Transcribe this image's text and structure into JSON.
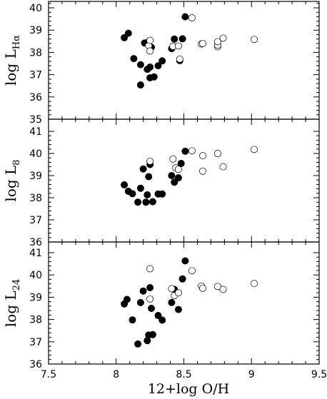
{
  "chart_data": {
    "type": "scatter",
    "xlabel": "12+log O/H",
    "x_ticks": [
      "7.5",
      "8",
      "8.5",
      "9",
      "9.5"
    ],
    "xlim": [
      7.5,
      9.5
    ],
    "panels": [
      {
        "ylabel_main": "log L",
        "ylabel_sub": "Hα",
        "ylim": [
          35,
          40.4
        ],
        "y_ticks": [
          "35",
          "36",
          "37",
          "38",
          "39",
          "40"
        ],
        "series": [
          {
            "marker": "filled",
            "points": [
              [
                8.06,
                38.66
              ],
              [
                8.09,
                38.86
              ],
              [
                8.13,
                37.72
              ],
              [
                8.18,
                36.54
              ],
              [
                8.18,
                37.45
              ],
              [
                8.21,
                38.42
              ],
              [
                8.23,
                37.24
              ],
              [
                8.24,
                38.48
              ],
              [
                8.25,
                36.86
              ],
              [
                8.25,
                37.34
              ],
              [
                8.26,
                38.23
              ],
              [
                8.28,
                36.9
              ],
              [
                8.31,
                37.4
              ],
              [
                8.34,
                37.62
              ],
              [
                8.41,
                38.17
              ],
              [
                8.43,
                38.6
              ],
              [
                8.47,
                37.63
              ],
              [
                8.49,
                38.61
              ],
              [
                8.51,
                39.6
              ]
            ]
          },
          {
            "marker": "open",
            "points": [
              [
                8.24,
                38.3
              ],
              [
                8.25,
                38.54
              ],
              [
                8.25,
                38.06
              ],
              [
                8.42,
                38.27
              ],
              [
                8.46,
                38.29
              ],
              [
                8.47,
                37.7
              ],
              [
                8.56,
                39.55
              ],
              [
                8.63,
                38.38
              ],
              [
                8.64,
                38.4
              ],
              [
                8.75,
                38.25
              ],
              [
                8.75,
                38.32
              ],
              [
                8.75,
                38.48
              ],
              [
                8.79,
                38.64
              ],
              [
                9.02,
                38.58
              ]
            ]
          }
        ]
      },
      {
        "ylabel_main": "log L",
        "ylabel_sub": "8",
        "ylim": [
          36,
          41.1
        ],
        "y_ticks": [
          "36",
          "37",
          "38",
          "39",
          "40",
          "41"
        ],
        "series": [
          {
            "marker": "filled",
            "points": [
              [
                8.06,
                38.58
              ],
              [
                8.09,
                38.29
              ],
              [
                8.12,
                38.18
              ],
              [
                8.16,
                37.8
              ],
              [
                8.18,
                38.43
              ],
              [
                8.2,
                39.3
              ],
              [
                8.22,
                37.8
              ],
              [
                8.23,
                38.13
              ],
              [
                8.24,
                38.95
              ],
              [
                8.25,
                39.5
              ],
              [
                8.27,
                37.82
              ],
              [
                8.31,
                38.17
              ],
              [
                8.34,
                38.17
              ],
              [
                8.41,
                39.0
              ],
              [
                8.43,
                38.7
              ],
              [
                8.46,
                38.9
              ],
              [
                8.48,
                39.55
              ],
              [
                8.51,
                40.1
              ]
            ]
          },
          {
            "marker": "open",
            "points": [
              [
                8.25,
                39.65
              ],
              [
                8.42,
                39.75
              ],
              [
                8.44,
                39.35
              ],
              [
                8.46,
                39.28
              ],
              [
                8.56,
                40.12
              ],
              [
                8.64,
                39.9
              ],
              [
                8.64,
                39.2
              ],
              [
                8.75,
                40.0
              ],
              [
                8.79,
                39.4
              ],
              [
                9.02,
                40.18
              ]
            ]
          }
        ]
      },
      {
        "ylabel_main": "log L",
        "ylabel_sub": "24",
        "ylim": [
          36,
          41.1
        ],
        "y_ticks": [
          "36",
          "37",
          "38",
          "39",
          "40",
          "41"
        ],
        "series": [
          {
            "marker": "filled",
            "points": [
              [
                8.06,
                38.7
              ],
              [
                8.08,
                38.9
              ],
              [
                8.12,
                37.98
              ],
              [
                8.16,
                36.9
              ],
              [
                8.18,
                38.76
              ],
              [
                8.2,
                39.28
              ],
              [
                8.23,
                37.05
              ],
              [
                8.24,
                37.3
              ],
              [
                8.25,
                39.43
              ],
              [
                8.26,
                38.5
              ],
              [
                8.27,
                37.32
              ],
              [
                8.31,
                38.18
              ],
              [
                8.34,
                37.97
              ],
              [
                8.41,
                38.76
              ],
              [
                8.43,
                39.35
              ],
              [
                8.46,
                38.45
              ],
              [
                8.49,
                39.82
              ],
              [
                8.51,
                40.63
              ]
            ]
          },
          {
            "marker": "open",
            "points": [
              [
                8.25,
                40.28
              ],
              [
                8.25,
                38.92
              ],
              [
                8.41,
                39.38
              ],
              [
                8.43,
                39.07
              ],
              [
                8.46,
                39.2
              ],
              [
                8.56,
                40.19
              ],
              [
                8.63,
                39.5
              ],
              [
                8.64,
                39.4
              ],
              [
                8.75,
                39.48
              ],
              [
                8.79,
                39.35
              ],
              [
                9.02,
                39.62
              ]
            ]
          }
        ]
      }
    ]
  }
}
